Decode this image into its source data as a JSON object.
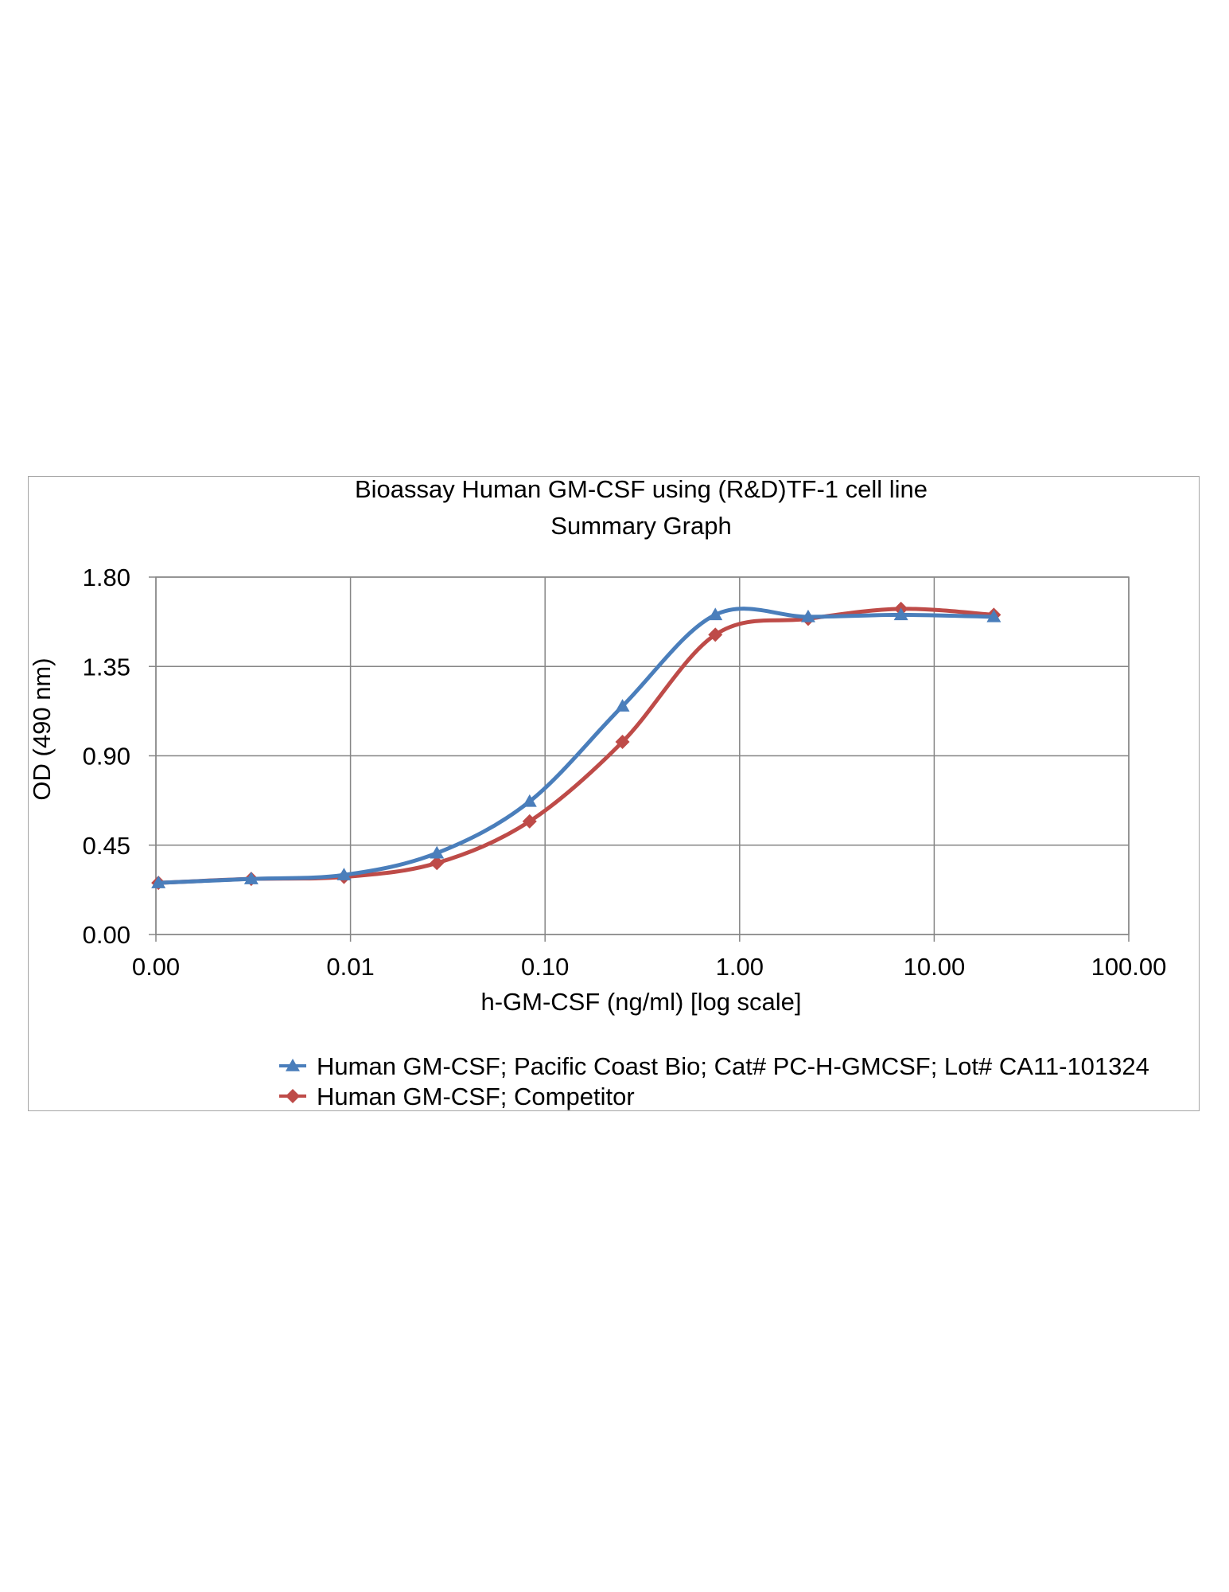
{
  "chart_data": {
    "type": "line",
    "title": "Bioassay Human GM-CSF using (R&D)TF-1 cell line",
    "subtitle": "Summary Graph",
    "xlabel": "h-GM-CSF (ng/ml) [log scale]",
    "ylabel": "OD (490 nm)",
    "x_scale": "log",
    "xlim": [
      0.001,
      100
    ],
    "ylim": [
      0,
      1.8
    ],
    "x_tick_values": [
      0.001,
      0.01,
      0.1,
      1,
      10,
      100
    ],
    "x_tick_labels": [
      "0.00",
      "0.01",
      "0.10",
      "1.00",
      "10.00",
      "100.00"
    ],
    "y_tick_values": [
      0,
      0.45,
      0.9,
      1.35,
      1.8
    ],
    "y_tick_labels": [
      "0.00",
      "0.45",
      "0.90",
      "1.35",
      "1.80"
    ],
    "grid": true,
    "smooth": true,
    "legend_position": "bottom",
    "series": [
      {
        "name": "Human GM-CSF; Pacific Coast Bio; Cat# PC-H-GMCSF; Lot# CA11-101324",
        "color": "#4a7ebb",
        "marker": "triangle",
        "x": [
          0.00103,
          0.00309,
          0.00926,
          0.0278,
          0.0833,
          0.25,
          0.75,
          2.25,
          6.75,
          20.25
        ],
        "y": [
          0.26,
          0.28,
          0.3,
          0.41,
          0.67,
          1.15,
          1.61,
          1.6,
          1.61,
          1.6
        ]
      },
      {
        "name": "Human GM-CSF; Competitor",
        "color": "#be4b48",
        "marker": "diamond",
        "x": [
          0.00103,
          0.00309,
          0.00926,
          0.0278,
          0.0833,
          0.25,
          0.75,
          2.25,
          6.75,
          20.25
        ],
        "y": [
          0.26,
          0.28,
          0.29,
          0.36,
          0.57,
          0.97,
          1.51,
          1.59,
          1.64,
          1.61
        ]
      }
    ]
  }
}
